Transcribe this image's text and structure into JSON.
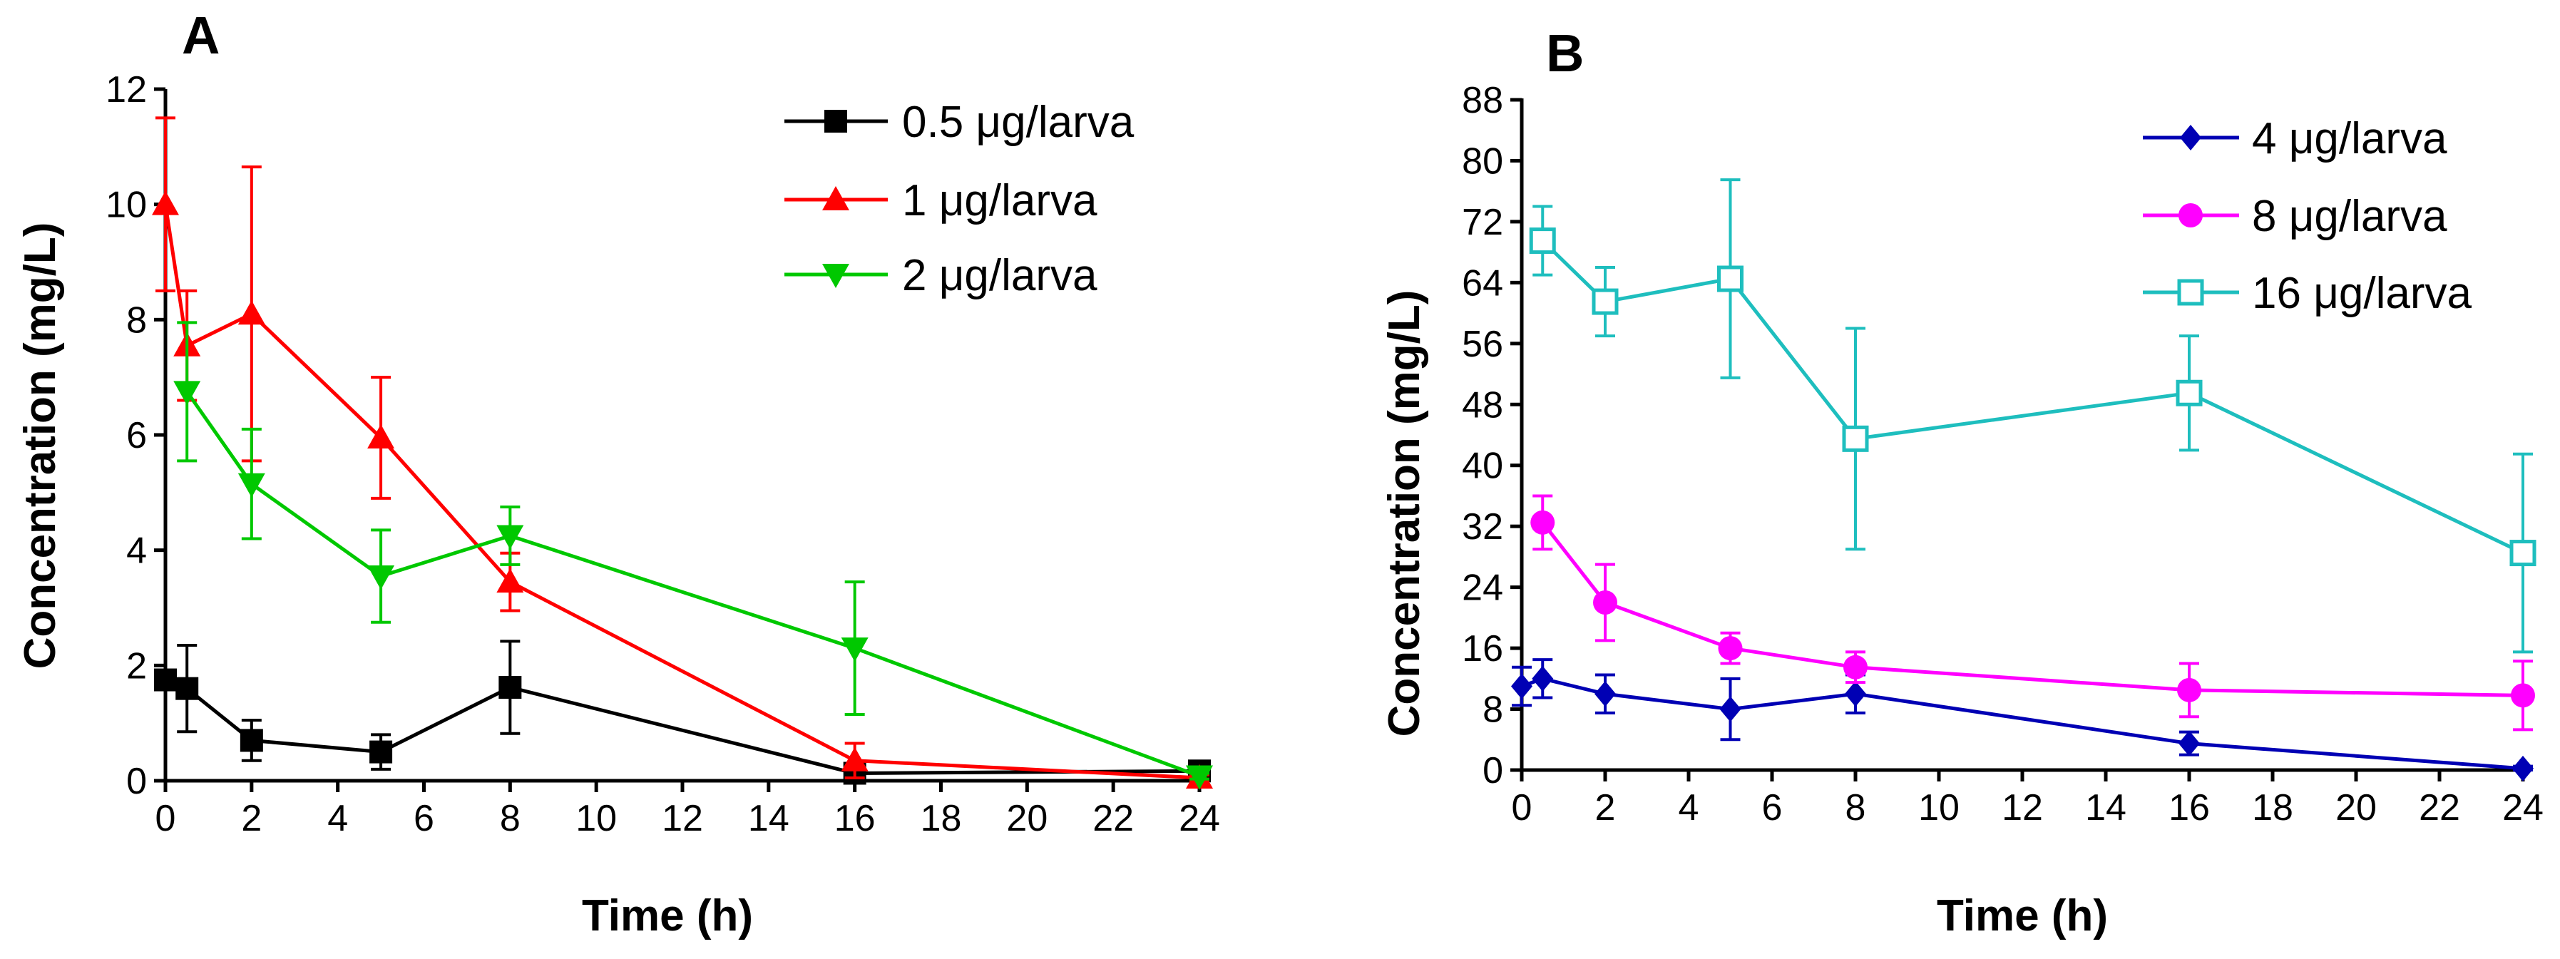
{
  "chart_data": [
    {
      "type": "line",
      "panel_label": "A",
      "xlabel": "Time (h)",
      "ylabel": "Concentration (mg/L)",
      "xlim": [
        0,
        24
      ],
      "ylim": [
        0,
        12
      ],
      "xticks": [
        0,
        2,
        4,
        6,
        8,
        10,
        12,
        14,
        16,
        18,
        20,
        22,
        24
      ],
      "xtick_labels": [
        "0",
        "2",
        "4",
        "6",
        "8",
        "10",
        "12",
        "14",
        "16",
        "18",
        "20",
        "22",
        "24"
      ],
      "yticks": [
        0,
        2,
        4,
        6,
        8,
        10,
        12
      ],
      "ytick_labels": [
        "0",
        "2",
        "4",
        "6",
        "8",
        "10",
        "12"
      ],
      "grid": false,
      "legend_position": "top-right",
      "series": [
        {
          "name": "0.5 μg/larva",
          "color": "#000000",
          "marker": "square",
          "x": [
            0,
            0.5,
            2,
            5,
            8,
            16,
            24
          ],
          "y": [
            1.75,
            1.6,
            0.7,
            0.5,
            1.62,
            0.13,
            0.17
          ],
          "err": [
            0.15,
            0.75,
            0.35,
            0.3,
            0.8,
            0.05,
            0.05
          ]
        },
        {
          "name": "1 μg/larva",
          "color": "#ff0000",
          "marker": "triangle-up",
          "x": [
            0,
            0.5,
            2,
            5,
            8,
            16,
            24
          ],
          "y": [
            10.0,
            7.55,
            8.1,
            5.95,
            3.45,
            0.35,
            0.05
          ],
          "err": [
            1.5,
            0.95,
            2.55,
            1.05,
            0.5,
            0.3,
            0.05
          ]
        },
        {
          "name": "2 μg/larva",
          "color": "#00c800",
          "marker": "triangle-down",
          "x": [
            0.5,
            2,
            5,
            8,
            16,
            24
          ],
          "y": [
            6.75,
            5.15,
            3.55,
            4.25,
            2.3,
            0.08
          ],
          "err": [
            1.2,
            0.95,
            0.8,
            0.5,
            1.15,
            0.05
          ]
        }
      ]
    },
    {
      "type": "line",
      "panel_label": "B",
      "xlabel": "Time (h)",
      "ylabel": "Concentration (mg/L)",
      "xlim": [
        0,
        24
      ],
      "ylim": [
        0,
        88
      ],
      "xticks": [
        0,
        2,
        4,
        6,
        8,
        10,
        12,
        14,
        16,
        18,
        20,
        22,
        24
      ],
      "xtick_labels": [
        "0",
        "2",
        "4",
        "6",
        "8",
        "10",
        "12",
        "14",
        "16",
        "18",
        "20",
        "22",
        "24"
      ],
      "yticks": [
        0,
        8,
        16,
        24,
        32,
        40,
        48,
        56,
        64,
        72,
        80,
        88
      ],
      "ytick_labels": [
        "0",
        "8",
        "16",
        "24",
        "32",
        "40",
        "48",
        "56",
        "64",
        "72",
        "80",
        "88"
      ],
      "grid": false,
      "legend_position": "top-right",
      "series": [
        {
          "name": "4 μg/larva",
          "color": "#0000b4",
          "marker": "diamond",
          "x": [
            0,
            0.5,
            2,
            5,
            8,
            16,
            24
          ],
          "y": [
            11.0,
            12.0,
            10.0,
            8.0,
            10.0,
            3.5,
            0.2
          ],
          "err": [
            2.5,
            2.5,
            2.5,
            4.0,
            2.5,
            1.5,
            0.3
          ]
        },
        {
          "name": "8 μg/larva",
          "color": "#ff00ff",
          "marker": "circle",
          "x": [
            0.5,
            2,
            5,
            8,
            16,
            24
          ],
          "y": [
            32.5,
            22.0,
            16.0,
            13.5,
            10.5,
            9.8
          ],
          "err": [
            3.5,
            5.0,
            2.0,
            2.0,
            3.5,
            4.5
          ]
        },
        {
          "name": "16 μg/larva",
          "color": "#1ebebe",
          "marker": "square-open",
          "x": [
            0.5,
            2,
            5,
            8,
            16,
            24
          ],
          "y": [
            69.5,
            61.5,
            64.5,
            43.5,
            49.5,
            28.5
          ],
          "err": [
            4.5,
            4.5,
            13.0,
            14.5,
            7.5,
            13.0
          ]
        }
      ]
    }
  ]
}
